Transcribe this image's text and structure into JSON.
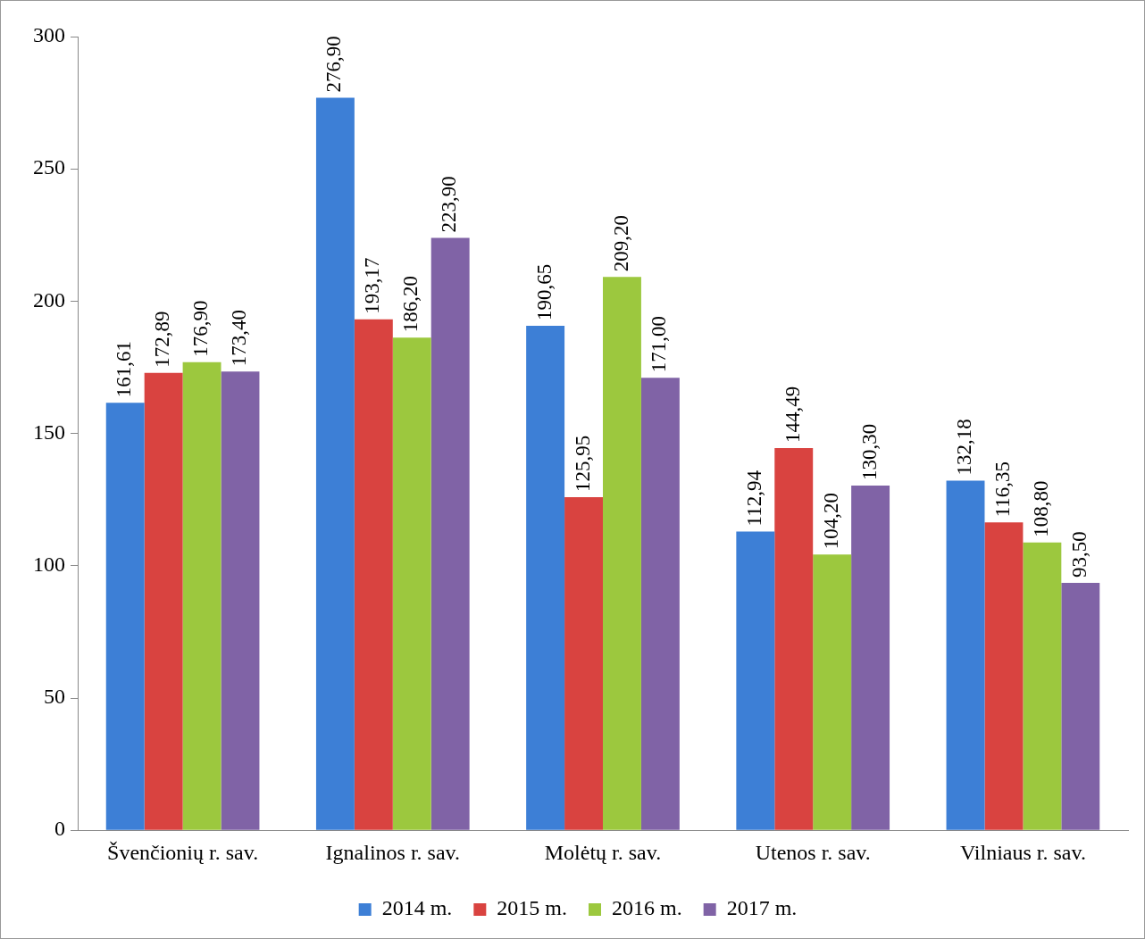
{
  "chart_data": {
    "type": "bar",
    "categories": [
      "Švenčionių r. sav.",
      "Ignalinos r. sav.",
      "Molėtų r. sav.",
      "Utenos r. sav.",
      "Vilniaus r. sav."
    ],
    "series": [
      {
        "name": "2014 m.",
        "color": "#3d7fd6",
        "values": [
          161.61,
          276.9,
          190.65,
          112.94,
          132.18
        ],
        "value_labels": [
          "161,61",
          "276,90",
          "190,65",
          "112,94",
          "132,18"
        ]
      },
      {
        "name": "2015 m.",
        "color": "#d94340",
        "values": [
          172.89,
          193.17,
          125.95,
          144.49,
          116.35
        ],
        "value_labels": [
          "172,89",
          "193,17",
          "125,95",
          "144,49",
          "116,35"
        ]
      },
      {
        "name": "2016 m.",
        "color": "#9cc83e",
        "values": [
          176.9,
          186.2,
          209.2,
          104.2,
          108.8
        ],
        "value_labels": [
          "176,90",
          "186,20",
          "209,20",
          "104,20",
          "108,80"
        ]
      },
      {
        "name": "2017 m.",
        "color": "#8063a6",
        "values": [
          173.4,
          223.9,
          171.0,
          130.3,
          93.5
        ],
        "value_labels": [
          "173,40",
          "223,90",
          "171,00",
          "130,30",
          "93,50"
        ]
      }
    ],
    "ylim": [
      0,
      300
    ],
    "yticks": [
      0,
      50,
      100,
      150,
      200,
      250,
      300
    ],
    "grid": false,
    "legend": "bottom"
  }
}
